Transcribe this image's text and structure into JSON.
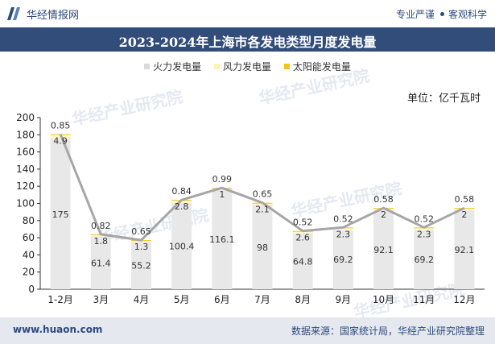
{
  "header": {
    "brand": "华经情报网",
    "slogan_left": "专业严谨",
    "slogan_right": "客观科学"
  },
  "watermarks": [
    "华经产业研究院",
    "华经产业研究院",
    "华经产业研究院",
    "华经产业研究院",
    "华经产业研究院"
  ],
  "footer": {
    "url": "www.huaon.com",
    "source": "数据来源：国家统计局，华经产业研究院整理"
  },
  "colors": {
    "title_bar": "#324d7a",
    "thermal": "#e8e8e8",
    "wind": "#fdf7c9",
    "solar": "#f0c419",
    "line": "#a6a6a6",
    "brand": "#2c4a7c"
  },
  "chart_data": {
    "type": "bar",
    "stacked": true,
    "title": "2023-2024年上海市各发电类型月度发电量",
    "unit_label": "单位：亿千瓦时",
    "categories": [
      "1-2月",
      "3月",
      "4月",
      "5月",
      "6月",
      "7月",
      "8月",
      "9月",
      "10月",
      "11月",
      "12月"
    ],
    "series": [
      {
        "name": "火力发电量",
        "values": [
          175,
          61.4,
          55.2,
          100.4,
          116.1,
          98,
          64.8,
          69.2,
          92.1,
          69.2,
          92.1
        ]
      },
      {
        "name": "风力发电量",
        "values": [
          4.9,
          1.8,
          1.3,
          2.8,
          1,
          2.1,
          2.6,
          2.3,
          2,
          2.3,
          2
        ]
      },
      {
        "name": "太阳能发电量",
        "values": [
          0.85,
          0.82,
          0.65,
          0.84,
          0.99,
          0.65,
          0.52,
          0.52,
          0.58,
          0.52,
          0.58
        ]
      }
    ],
    "ylim": [
      0,
      200
    ],
    "yticks": [
      0,
      20,
      40,
      60,
      80,
      100,
      120,
      140,
      160,
      180,
      200
    ],
    "legend_position": "top-center",
    "grid": false
  }
}
